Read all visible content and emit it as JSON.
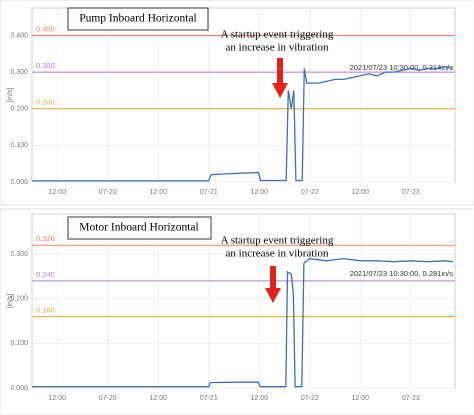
{
  "chart_data": [
    {
      "type": "line",
      "title": "Pump Inboard Horizontal",
      "annotation": [
        "A startup event triggering",
        "an increase in vibration"
      ],
      "y_label": "[in/s]",
      "reading": "2021/07/23 10:30:00,  0.314in/s",
      "xlim": [
        6,
        106.5
      ],
      "ylim": [
        0,
        0.475
      ],
      "xticks": [
        {
          "value": 12,
          "label": "12:00"
        },
        {
          "value": 24,
          "label": "07-20"
        },
        {
          "value": 36,
          "label": "12:00"
        },
        {
          "value": 48,
          "label": "07-21"
        },
        {
          "value": 60,
          "label": "12:00"
        },
        {
          "value": 72,
          "label": "07-22"
        },
        {
          "value": 84,
          "label": "12:00"
        },
        {
          "value": 96,
          "label": "07-23"
        }
      ],
      "yticks": [
        {
          "value": 0,
          "label": "0.000"
        },
        {
          "value": 0.1,
          "label": "0.100"
        },
        {
          "value": 0.2,
          "label": "0.200"
        },
        {
          "value": 0.3,
          "label": "0.300"
        },
        {
          "value": 0.4,
          "label": "0.400"
        }
      ],
      "thresholds": [
        {
          "value": 0.4,
          "label": "0.400",
          "color": "#e8836b"
        },
        {
          "value": 0.3,
          "label": "0.300",
          "color": "#b87ad1"
        },
        {
          "value": 0.2,
          "label": "0.200",
          "color": "#f0a43c"
        }
      ],
      "series": [
        {
          "color": "#3d6fb6",
          "x": [
            6,
            48,
            48.5,
            52,
            56,
            59.8,
            60.3,
            66.4,
            66.9,
            67.6,
            68.2,
            68.7,
            69.2,
            70.2,
            70.7,
            71.3,
            74,
            76,
            78,
            80,
            82,
            84,
            86,
            88,
            90,
            92,
            94,
            96,
            98,
            100,
            102,
            104,
            106
          ],
          "values": [
            0.003,
            0.003,
            0.02,
            0.022,
            0.024,
            0.026,
            0.004,
            0.004,
            0.25,
            0.2,
            0.25,
            0.004,
            0.004,
            0.004,
            0.31,
            0.27,
            0.27,
            0.275,
            0.28,
            0.28,
            0.285,
            0.29,
            0.295,
            0.29,
            0.3,
            0.3,
            0.305,
            0.31,
            0.305,
            0.31,
            0.31,
            0.315,
            0.31
          ]
        }
      ]
    },
    {
      "type": "line",
      "title": "Motor Inboard Horizontal",
      "annotation": [
        "A startup event triggering",
        "an increase in vibration"
      ],
      "y_label": "[in/s]",
      "reading": "2021/07/23 10:30:00,  0.281in/s",
      "xlim": [
        6,
        106.5
      ],
      "ylim": [
        0,
        0.39
      ],
      "xticks": [
        {
          "value": 12,
          "label": "12:00"
        },
        {
          "value": 24,
          "label": "07-20"
        },
        {
          "value": 36,
          "label": "12:00"
        },
        {
          "value": 48,
          "label": "07-21"
        },
        {
          "value": 60,
          "label": "12:00"
        },
        {
          "value": 72,
          "label": "07-22"
        },
        {
          "value": 84,
          "label": "12:00"
        },
        {
          "value": 96,
          "label": "07-23"
        }
      ],
      "yticks": [
        {
          "value": 0,
          "label": "0.000"
        },
        {
          "value": 0.1,
          "label": "0.100"
        },
        {
          "value": 0.2,
          "label": "0.200"
        },
        {
          "value": 0.3,
          "label": "0.300"
        }
      ],
      "thresholds": [
        {
          "value": 0.32,
          "label": "0.320",
          "color": "#e8836b"
        },
        {
          "value": 0.24,
          "label": "0.240",
          "color": "#b87ad1"
        },
        {
          "value": 0.16,
          "label": "0.160",
          "color": "#f0a43c"
        }
      ],
      "series": [
        {
          "color": "#3d6fb6",
          "x": [
            6,
            48,
            48.3,
            54,
            59.8,
            60.2,
            66.3,
            66.7,
            67.6,
            68.1,
            68.5,
            70.1,
            70.6,
            72,
            76,
            80,
            84,
            88,
            92,
            96,
            100,
            104,
            106
          ],
          "values": [
            0.003,
            0.003,
            0.012,
            0.013,
            0.013,
            0.003,
            0.003,
            0.26,
            0.255,
            0.21,
            0.003,
            0.003,
            0.28,
            0.29,
            0.285,
            0.29,
            0.285,
            0.285,
            0.283,
            0.285,
            0.283,
            0.285,
            0.283
          ]
        }
      ]
    }
  ]
}
